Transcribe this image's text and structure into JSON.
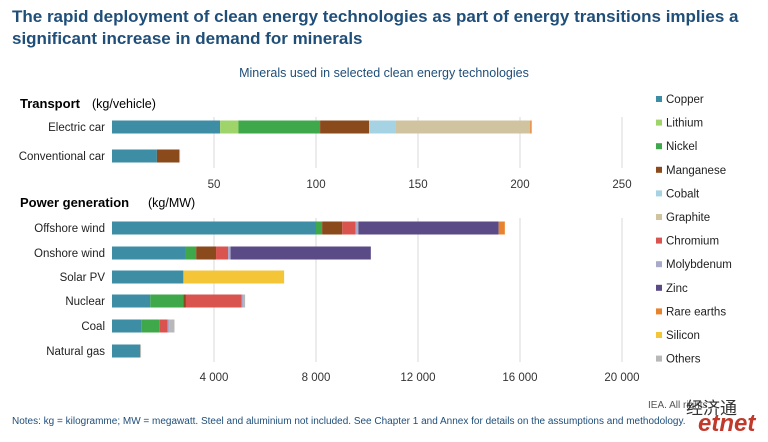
{
  "title": "The rapid deployment of clean energy technologies as part of energy transitions implies a significant increase in demand for minerals",
  "subtitle": "Minerals used in selected clean energy technologies",
  "notes": "Notes: kg = kilogramme; MW = megawatt. Steel and aluminium not included. See Chapter 1 and Annex for details on the assumptions and methodology.",
  "source": "IEA. All rights",
  "watermark_cn": "经济通",
  "watermark_en": "etnet",
  "colors": {
    "Copper": "#3d8ea5",
    "Lithium": "#9ed46a",
    "Nickel": "#3ea84a",
    "Manganese": "#8b4a1c",
    "Cobalt": "#a6d3e3",
    "Graphite": "#cfc3a0",
    "Chromium": "#d9534f",
    "Molybdenum": "#a9a9c9",
    "Zinc": "#5a4a86",
    "Rare earths": "#e8832c",
    "Silicon": "#f3c537",
    "Others": "#b8b8b8"
  },
  "chart_data": [
    {
      "type": "bar",
      "orientation": "horizontal",
      "stacked": true,
      "panel_title": "Transport",
      "panel_unit": "(kg/vehicle)",
      "categories": [
        "Electric car",
        "Conventional car"
      ],
      "xlim": [
        0,
        250
      ],
      "xticks": [
        50,
        100,
        150,
        200,
        250
      ],
      "xtick_labels": [
        "50",
        "100",
        "150",
        "200",
        "250"
      ],
      "series": [
        {
          "name": "Copper",
          "values": [
            53,
            22
          ]
        },
        {
          "name": "Lithium",
          "values": [
            9,
            0
          ]
        },
        {
          "name": "Nickel",
          "values": [
            40,
            0
          ]
        },
        {
          "name": "Manganese",
          "values": [
            24,
            11
          ]
        },
        {
          "name": "Cobalt",
          "values": [
            13,
            0
          ]
        },
        {
          "name": "Graphite",
          "values": [
            66,
            0
          ]
        },
        {
          "name": "Rare earths",
          "values": [
            0.5,
            0
          ]
        },
        {
          "name": "Others",
          "values": [
            0.3,
            0.3
          ]
        }
      ]
    },
    {
      "type": "bar",
      "orientation": "horizontal",
      "stacked": true,
      "panel_title": "Power generation",
      "panel_unit": "(kg/MW)",
      "categories": [
        "Offshore wind",
        "Onshore wind",
        "Solar PV",
        "Nuclear",
        "Coal",
        "Natural gas"
      ],
      "xlim": [
        0,
        20000
      ],
      "xticks": [
        4000,
        8000,
        12000,
        16000,
        20000
      ],
      "xtick_labels": [
        "4 000",
        "8 000",
        "12 000",
        "16 000",
        "20 000"
      ],
      "series": [
        {
          "name": "Copper",
          "values": [
            8000,
            2900,
            2800,
            1500,
            1150,
            1100
          ]
        },
        {
          "name": "Nickel",
          "values": [
            240,
            400,
            0,
            1300,
            720,
            0
          ]
        },
        {
          "name": "Manganese",
          "values": [
            790,
            780,
            0,
            100,
            0,
            0
          ]
        },
        {
          "name": "Chromium",
          "values": [
            525,
            470,
            0,
            2190,
            310,
            0
          ]
        },
        {
          "name": "Molybdenum",
          "values": [
            110,
            100,
            0,
            70,
            70,
            0
          ]
        },
        {
          "name": "Zinc",
          "values": [
            5500,
            5500,
            0,
            0,
            0,
            0
          ]
        },
        {
          "name": "Rare earths",
          "values": [
            240,
            0,
            0,
            0,
            0,
            0
          ]
        },
        {
          "name": "Silicon",
          "values": [
            0,
            0,
            3950,
            0,
            0,
            0
          ]
        },
        {
          "name": "Others",
          "values": [
            0,
            0,
            0,
            60,
            200,
            40
          ]
        }
      ]
    }
  ],
  "legend": {
    "position": "right",
    "items": [
      "Copper",
      "Lithium",
      "Nickel",
      "Manganese",
      "Cobalt",
      "Graphite",
      "Chromium",
      "Molybdenum",
      "Zinc",
      "Rare earths",
      "Silicon",
      "Others"
    ]
  }
}
